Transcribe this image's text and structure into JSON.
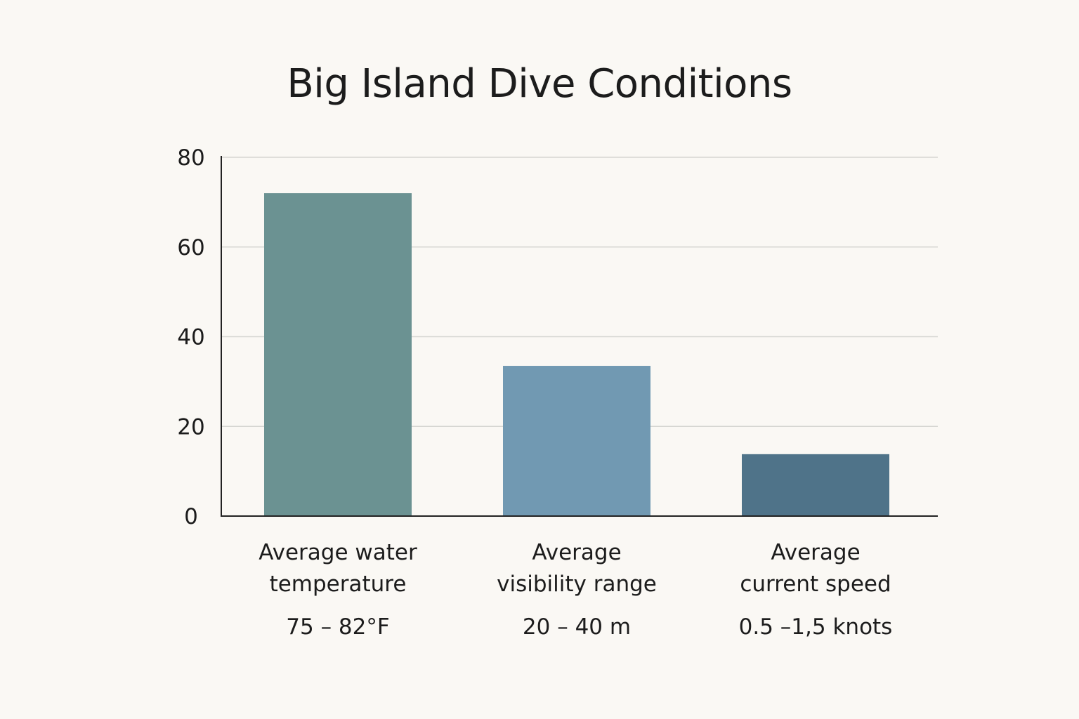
{
  "chart_data": {
    "type": "bar",
    "title": "Big Island Dive Conditions",
    "xlabel": "",
    "ylabel": "",
    "ylim": [
      0,
      80
    ],
    "yticks": [
      0,
      20,
      40,
      60,
      80
    ],
    "grid": true,
    "categories": [
      [
        "Average water",
        "temperature"
      ],
      [
        "Average",
        "visibility range"
      ],
      [
        "Average",
        "current speed"
      ]
    ],
    "range_labels": [
      "75 – 82°F",
      "20 – 40 m",
      "0.5 –1,5 knots"
    ],
    "values": [
      72,
      33.5,
      13.8
    ],
    "colors": [
      "#6b9292",
      "#7199b2",
      "#4f7389"
    ]
  }
}
